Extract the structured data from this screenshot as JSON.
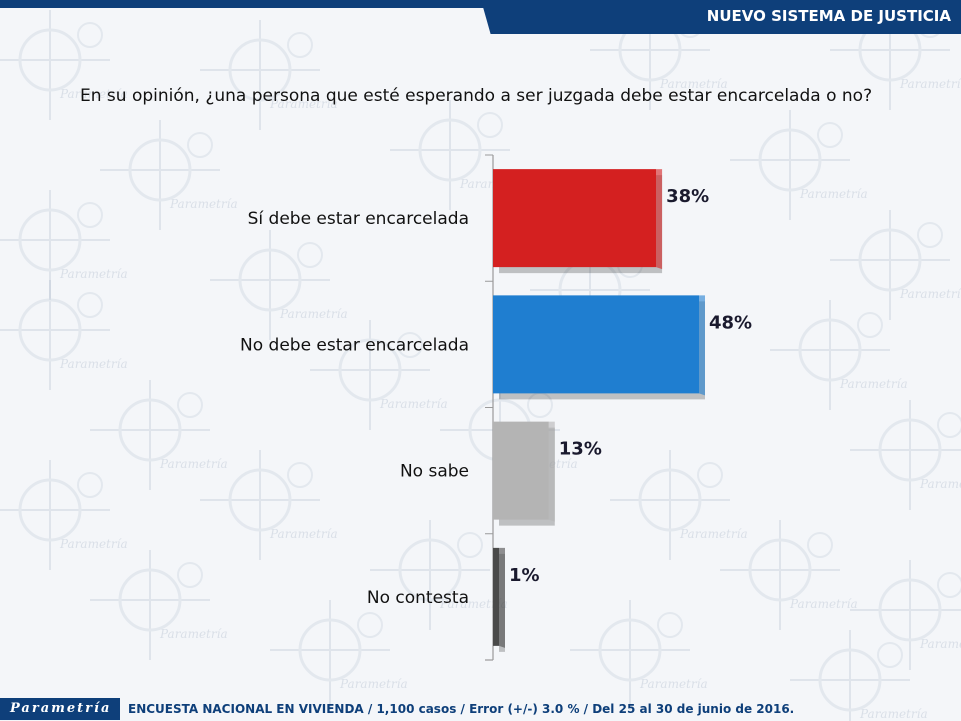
{
  "header": {
    "title": "NUEVO SISTEMA DE JUSTICIA"
  },
  "question": "En su opinión, ¿una persona que esté esperando a ser juzgada debe estar encarcelada o no?",
  "chart_data": {
    "type": "bar",
    "orientation": "horizontal",
    "title": "",
    "xlabel": "",
    "ylabel": "",
    "xlim": [
      0,
      55
    ],
    "categories": [
      "Sí debe estar encarcelada",
      "No debe estar encarcelada",
      "No sabe",
      "No contesta"
    ],
    "values": [
      38,
      48,
      13,
      1
    ],
    "value_labels": [
      "38%",
      "48%",
      "13%",
      "1%"
    ],
    "colors": [
      "#d42020",
      "#1f7ed0",
      "#b4b4b4",
      "#4a4a4a"
    ],
    "grid": false,
    "legend": "none"
  },
  "background": {
    "watermark": "Parametría"
  },
  "footer": {
    "logo": "Parametría",
    "note": "ENCUESTA NACIONAL EN VIVIENDA / 1,100 casos / Error (+/-) 3.0 % / Del 25 al 30 de junio de 2016."
  }
}
